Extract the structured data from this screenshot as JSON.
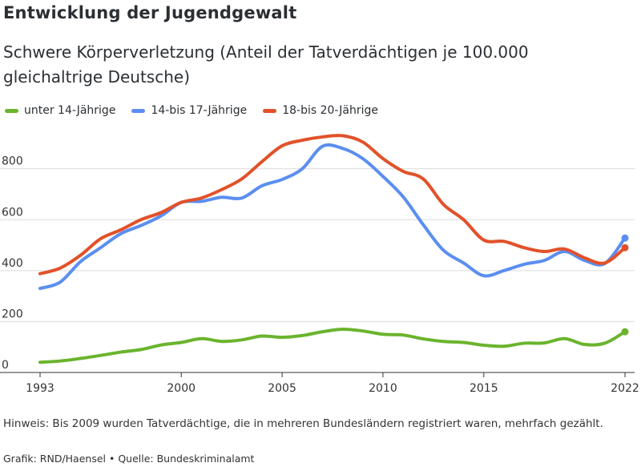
{
  "title": "Entwicklung der Jugendgewalt",
  "subtitle": "Schwere Körperverletzung (Anteil der Tatverdächtigen je 100.000 gleichaltrige Deutsche)",
  "note": "Hinweis: Bis 2009 wurden Tatverdächtige, die in mehreren Bundesländern registriert waren, mehrfach gezählt.",
  "source": "Grafik: RND/Haensel • Quelle: Bundeskriminalamt",
  "chart_data": {
    "type": "line",
    "title": "Entwicklung der Jugendgewalt",
    "subtitle": "Schwere Körperverletzung (Anteil der Tatverdächtigen je 100.000 gleichaltrige Deutsche)",
    "xlabel": "",
    "ylabel": "",
    "xlim": [
      1993,
      2022
    ],
    "ylim": [
      0,
      950
    ],
    "x_ticks": [
      1993,
      2000,
      2005,
      2010,
      2015,
      2022
    ],
    "y_ticks": [
      0,
      200,
      400,
      600,
      800
    ],
    "grid": "horizontal",
    "legend_position": "top-left",
    "x": [
      1993,
      1994,
      1995,
      1996,
      1997,
      1998,
      1999,
      2000,
      2001,
      2002,
      2003,
      2004,
      2005,
      2006,
      2007,
      2008,
      2009,
      2010,
      2011,
      2012,
      2013,
      2014,
      2015,
      2016,
      2017,
      2018,
      2019,
      2020,
      2021,
      2022
    ],
    "series": [
      {
        "name": "unter 14-Jährige",
        "color": "#6ab42d",
        "values": [
          40,
          45,
          55,
          67,
          80,
          90,
          108,
          118,
          133,
          122,
          128,
          143,
          138,
          145,
          160,
          170,
          163,
          150,
          147,
          132,
          122,
          118,
          107,
          103,
          115,
          116,
          133,
          110,
          115,
          160
        ]
      },
      {
        "name": "14-bis 17-Jährige",
        "color": "#5b8ef0",
        "values": [
          330,
          355,
          435,
          490,
          545,
          577,
          615,
          668,
          672,
          688,
          685,
          733,
          758,
          800,
          888,
          880,
          840,
          770,
          690,
          580,
          480,
          430,
          380,
          400,
          425,
          440,
          475,
          440,
          428,
          528
        ]
      },
      {
        "name": "18-bis 20-Jährige",
        "color": "#e2512a",
        "values": [
          388,
          410,
          460,
          525,
          560,
          600,
          628,
          668,
          685,
          718,
          760,
          828,
          890,
          912,
          925,
          930,
          905,
          840,
          790,
          760,
          660,
          600,
          520,
          515,
          490,
          475,
          485,
          450,
          430,
          490
        ]
      }
    ]
  }
}
